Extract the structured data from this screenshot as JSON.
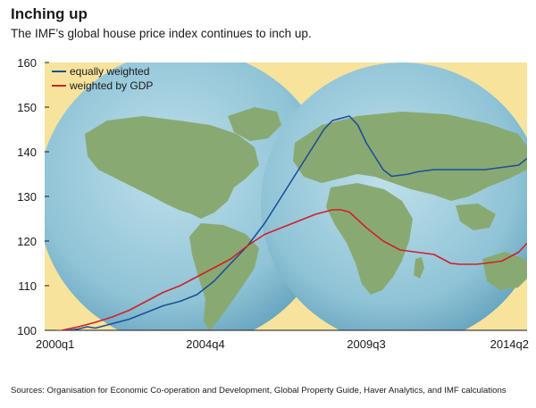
{
  "header": {
    "title": "Inching up",
    "subtitle": "The IMF’s global house price index continues to inch up."
  },
  "footer": {
    "source": "Sources: Organisation for Economic Co-operation and Development, Global Property Guide, Haver Analytics, and IMF calculations"
  },
  "colors": {
    "plot_background": "#f7e39c",
    "globe_fill": "#8fc3d6",
    "land": "#88aa72",
    "equally_weighted": "#1b4f9a",
    "weighted_by_gdp": "#d21f2a"
  },
  "chart_data": {
    "type": "line",
    "title": "Inching up",
    "subtitle": "The IMF’s global house price index continues to inch up.",
    "x_tick_labels": [
      "2000q1",
      "2004q4",
      "2009q3",
      "2014q2"
    ],
    "x_range": [
      "2000q1",
      "2014q2"
    ],
    "y_ticks": [
      100,
      110,
      120,
      130,
      140,
      150,
      160
    ],
    "ylim": [
      100,
      160
    ],
    "grid": false,
    "legend_placement": "top-left",
    "series": [
      {
        "name": "equally weighted",
        "color": "#1b4f9a",
        "points": [
          [
            "2000q1",
            99.5
          ],
          [
            "2000q3",
            99.8
          ],
          [
            "2001q1",
            100.3
          ],
          [
            "2001q2",
            100.8
          ],
          [
            "2001q3",
            100.5
          ],
          [
            "2002q1",
            101.5
          ],
          [
            "2002q3",
            102.5
          ],
          [
            "2003q1",
            104
          ],
          [
            "2003q3",
            105.5
          ],
          [
            "2004q1",
            106.5
          ],
          [
            "2004q3",
            108
          ],
          [
            "2005q1",
            111
          ],
          [
            "2005q3",
            115
          ],
          [
            "2006q1",
            119
          ],
          [
            "2006q3",
            124
          ],
          [
            "2007q1",
            130
          ],
          [
            "2007q3",
            136
          ],
          [
            "2008q1",
            142
          ],
          [
            "2008q2",
            145
          ],
          [
            "2008q3",
            147
          ],
          [
            "2009q1",
            148
          ],
          [
            "2009q2",
            146
          ],
          [
            "2009q3",
            142
          ],
          [
            "2010q1",
            136
          ],
          [
            "2010q2",
            134.5
          ],
          [
            "2010q4",
            135
          ],
          [
            "2011q1",
            135.5
          ],
          [
            "2011q3",
            136
          ],
          [
            "2012q1",
            136
          ],
          [
            "2012q3",
            136
          ],
          [
            "2013q1",
            136
          ],
          [
            "2013q3",
            136.5
          ],
          [
            "2014q1",
            137
          ],
          [
            "2014q2",
            138.5
          ]
        ]
      },
      {
        "name": "weighted by GDP",
        "color": "#d21f2a",
        "points": [
          [
            "2000q1",
            99.5
          ],
          [
            "2000q3",
            100
          ],
          [
            "2001q1",
            100.8
          ],
          [
            "2001q3",
            101.8
          ],
          [
            "2002q1",
            103
          ],
          [
            "2002q3",
            104.5
          ],
          [
            "2003q1",
            106.5
          ],
          [
            "2003q3",
            108.5
          ],
          [
            "2004q1",
            110
          ],
          [
            "2004q3",
            112
          ],
          [
            "2005q1",
            114
          ],
          [
            "2005q3",
            116
          ],
          [
            "2006q1",
            119
          ],
          [
            "2006q3",
            121.5
          ],
          [
            "2007q1",
            123
          ],
          [
            "2007q3",
            124.5
          ],
          [
            "2008q1",
            126
          ],
          [
            "2008q3",
            127
          ],
          [
            "2008q4",
            127
          ],
          [
            "2009q1",
            126.5
          ],
          [
            "2009q3",
            123
          ],
          [
            "2010q1",
            120
          ],
          [
            "2010q2",
            119
          ],
          [
            "2010q3",
            118
          ],
          [
            "2011q1",
            117.5
          ],
          [
            "2011q3",
            117
          ],
          [
            "2012q1",
            115
          ],
          [
            "2012q2",
            114.8
          ],
          [
            "2012q4",
            114.8
          ],
          [
            "2013q1",
            115
          ],
          [
            "2013q3",
            115.5
          ],
          [
            "2014q1",
            117.5
          ],
          [
            "2014q2",
            119.5
          ]
        ]
      }
    ]
  }
}
